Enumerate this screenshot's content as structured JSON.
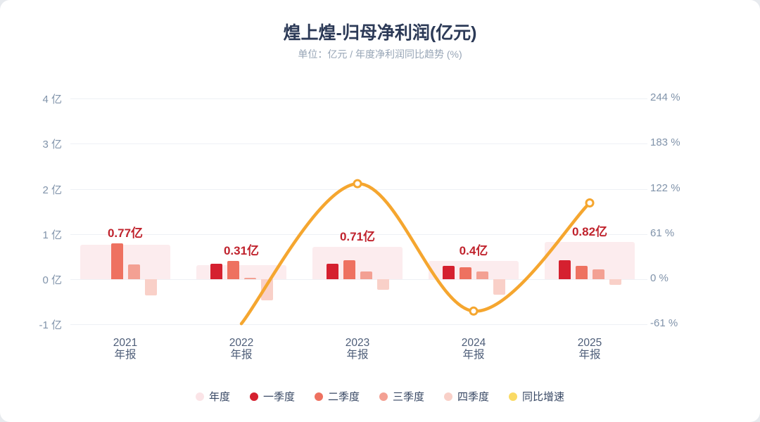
{
  "header": {
    "title": "煌上煌-归母净利润(亿元)",
    "subtitle": "单位：亿元 / 年度净利润同比趋势 (%)"
  },
  "colors": {
    "page_bg": "#e7eaee",
    "card_bg": "#ffffff",
    "title": "#2c3a57",
    "subtitle": "#97a5b6",
    "axis_tick": "#8093aa",
    "x_label": "#4d5d78",
    "value_label": "#c0232d",
    "grid": "#eef1f5",
    "legend_text": "#374763"
  },
  "chart_data": {
    "type": "bar",
    "title": "煌上煌-归母净利润(亿元)",
    "subtitle": "单位：亿元 / 年度净利润同比趋势 (%)",
    "categories": [
      "2021 年报",
      "2022 年报",
      "2023 年报",
      "2024 年报",
      "2025 年报"
    ],
    "x_tick_lines": [
      [
        "2021",
        "年报"
      ],
      [
        "2022",
        "年报"
      ],
      [
        "2023",
        "年报"
      ],
      [
        "2024",
        "年报"
      ],
      [
        "2025",
        "年报"
      ]
    ],
    "left_axis": {
      "tick_labels": [
        "4 亿",
        "3 亿",
        "2 亿",
        "1 亿",
        "0 亿",
        "-1 亿"
      ],
      "tick_values": [
        4,
        3,
        2,
        1,
        0,
        -1
      ],
      "min": -1,
      "max": 4,
      "grid": true
    },
    "right_axis": {
      "tick_labels": [
        "244 %",
        "183 %",
        "122 %",
        "61 %",
        "0 %",
        "-61 %"
      ],
      "tick_values": [
        244,
        183,
        122,
        61,
        0,
        -61
      ]
    },
    "series": [
      {
        "key": "annual",
        "name": "年度",
        "type": "bar-background",
        "color": "#fcecee",
        "legend_color": "#fbe4e7",
        "values": [
          0.77,
          0.31,
          0.71,
          0.4,
          0.82
        ],
        "data_labels": [
          "0.77亿",
          "0.31亿",
          "0.71亿",
          "0.4亿",
          "0.82亿"
        ]
      },
      {
        "key": "q1",
        "name": "一季度",
        "type": "bar",
        "color": "#d5202f",
        "values": [
          0,
          0.35,
          0.35,
          0.3,
          0.42
        ]
      },
      {
        "key": "q2",
        "name": "二季度",
        "type": "bar",
        "color": "#ee7160",
        "values": [
          0.8,
          0.4,
          0.42,
          0.27,
          0.3
        ]
      },
      {
        "key": "q3",
        "name": "三季度",
        "type": "bar",
        "color": "#f3a093",
        "values": [
          0.33,
          0.03,
          0.17,
          0.17,
          0.22
        ]
      },
      {
        "key": "q4",
        "name": "四季度",
        "type": "bar",
        "color": "#f9d0c8",
        "values": [
          -0.36,
          -0.47,
          -0.23,
          -0.34,
          -0.12
        ]
      },
      {
        "key": "yoy",
        "name": "同比增速",
        "type": "line",
        "color": "#f5a62f",
        "legend_color": "#fada64",
        "marker_fill": "#ffffff",
        "unit": "%",
        "values": [
          null,
          -60,
          129,
          -43,
          103
        ],
        "markers": [
          false,
          false,
          true,
          true,
          true
        ]
      }
    ],
    "legend_position": "bottom"
  }
}
